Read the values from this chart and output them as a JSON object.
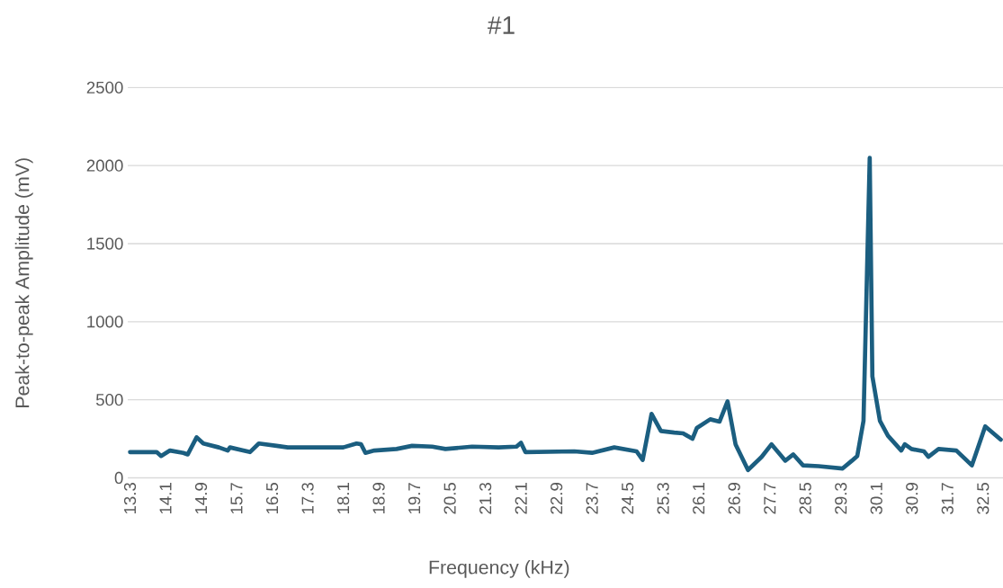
{
  "chart_data": {
    "type": "line",
    "title": "#1",
    "xlabel": "Frequency (kHz)",
    "ylabel": "Peak-to-peak Amplitude (mV)",
    "color": "#1b5e80",
    "grid": "y",
    "marker": "none",
    "line_style": "solid",
    "xlim": [
      13.25,
      32.95
    ],
    "ylim": [
      0,
      2500
    ],
    "xticks": [
      13.3,
      14.1,
      14.9,
      15.7,
      16.5,
      17.3,
      18.1,
      18.9,
      19.7,
      20.5,
      21.3,
      22.1,
      22.9,
      23.7,
      24.5,
      25.3,
      26.1,
      26.9,
      27.7,
      28.5,
      29.3,
      30.1,
      30.9,
      31.7,
      32.5
    ],
    "yticks": [
      0,
      500,
      1000,
      1500,
      2000,
      2500
    ],
    "x": [
      13.3,
      13.9,
      14.0,
      14.2,
      14.5,
      14.6,
      14.8,
      14.95,
      15.3,
      15.5,
      15.55,
      16.0,
      16.2,
      16.6,
      16.85,
      18.1,
      18.4,
      18.5,
      18.6,
      18.8,
      19.3,
      19.65,
      20.1,
      20.4,
      21.0,
      21.6,
      22.0,
      22.1,
      22.2,
      23.3,
      23.7,
      24.2,
      24.7,
      24.84,
      25.04,
      25.25,
      25.55,
      25.75,
      25.96,
      26.06,
      26.36,
      26.57,
      26.75,
      26.93,
      27.21,
      27.52,
      27.74,
      28.05,
      28.23,
      28.45,
      28.8,
      29.34,
      29.55,
      29.67,
      29.81,
      29.95,
      30.01,
      30.18,
      30.36,
      30.66,
      30.74,
      30.89,
      31.17,
      31.27,
      31.5,
      31.9,
      32.25,
      32.55,
      32.9
    ],
    "values": [
      165,
      165,
      140,
      175,
      160,
      150,
      260,
      220,
      195,
      175,
      195,
      165,
      220,
      205,
      195,
      195,
      220,
      215,
      160,
      175,
      185,
      205,
      200,
      185,
      200,
      195,
      200,
      225,
      165,
      170,
      160,
      195,
      170,
      115,
      410,
      300,
      290,
      285,
      250,
      320,
      375,
      360,
      490,
      215,
      50,
      135,
      215,
      110,
      150,
      80,
      75,
      60,
      110,
      140,
      365,
      2050,
      650,
      365,
      270,
      175,
      215,
      185,
      170,
      135,
      185,
      175,
      80,
      330,
      245
    ]
  }
}
